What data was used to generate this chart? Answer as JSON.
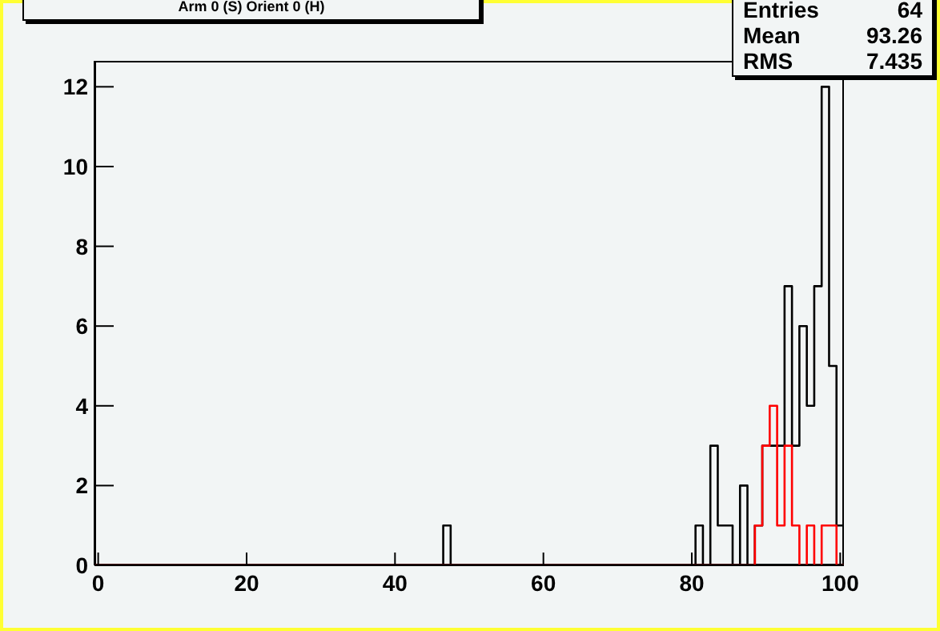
{
  "chart_data": {
    "type": "histogram",
    "title": "Arm 0 (S) Orient 0 (H)",
    "bins": [
      -0.5,
      0.5,
      1.5,
      2.5,
      3.5,
      4.5,
      5.5,
      6.5,
      7.5,
      8.5,
      9.5,
      10.5,
      11.5,
      12.5,
      13.5,
      14.5,
      15.5,
      16.5,
      17.5,
      18.5,
      19.5,
      20.5,
      21.5,
      22.5,
      23.5,
      24.5,
      25.5,
      26.5,
      27.5,
      28.5,
      29.5,
      30.5,
      31.5,
      32.5,
      33.5,
      34.5,
      35.5,
      36.5,
      37.5,
      38.5,
      39.5,
      40.5,
      41.5,
      42.5,
      43.5,
      44.5,
      45.5,
      46.5,
      47.5,
      48.5,
      49.5,
      50.5,
      51.5,
      52.5,
      53.5,
      54.5,
      55.5,
      56.5,
      57.5,
      58.5,
      59.5,
      60.5,
      61.5,
      62.5,
      63.5,
      64.5,
      65.5,
      66.5,
      67.5,
      68.5,
      69.5,
      70.5,
      71.5,
      72.5,
      73.5,
      74.5,
      75.5,
      76.5,
      77.5,
      78.5,
      79.5,
      80.5,
      81.5,
      82.5,
      83.5,
      84.5,
      85.5,
      86.5,
      87.5,
      88.5,
      89.5,
      90.5,
      91.5,
      92.5,
      93.5,
      94.5,
      95.5,
      96.5,
      97.5,
      98.5,
      99.5,
      100.5
    ],
    "series": [
      {
        "color": "#000000",
        "values": [
          0,
          0,
          0,
          0,
          0,
          0,
          0,
          0,
          0,
          0,
          0,
          0,
          0,
          0,
          0,
          0,
          0,
          0,
          0,
          0,
          0,
          0,
          0,
          0,
          0,
          0,
          0,
          0,
          0,
          0,
          0,
          0,
          0,
          0,
          0,
          0,
          0,
          0,
          0,
          0,
          0,
          0,
          0,
          0,
          0,
          0,
          0,
          1,
          0,
          0,
          0,
          0,
          0,
          0,
          0,
          0,
          0,
          0,
          0,
          0,
          0,
          0,
          0,
          0,
          0,
          0,
          0,
          0,
          0,
          0,
          0,
          0,
          0,
          0,
          0,
          0,
          0,
          0,
          0,
          0,
          0,
          1,
          0,
          3,
          1,
          1,
          0,
          2,
          0,
          1,
          3,
          3,
          3,
          7,
          3,
          6,
          4,
          7,
          12,
          5,
          1
        ]
      },
      {
        "color": "#ff0000",
        "values": [
          0,
          0,
          0,
          0,
          0,
          0,
          0,
          0,
          0,
          0,
          0,
          0,
          0,
          0,
          0,
          0,
          0,
          0,
          0,
          0,
          0,
          0,
          0,
          0,
          0,
          0,
          0,
          0,
          0,
          0,
          0,
          0,
          0,
          0,
          0,
          0,
          0,
          0,
          0,
          0,
          0,
          0,
          0,
          0,
          0,
          0,
          0,
          0,
          0,
          0,
          0,
          0,
          0,
          0,
          0,
          0,
          0,
          0,
          0,
          0,
          0,
          0,
          0,
          0,
          0,
          0,
          0,
          0,
          0,
          0,
          0,
          0,
          0,
          0,
          0,
          0,
          0,
          0,
          0,
          0,
          0,
          0,
          0,
          0,
          0,
          0,
          0,
          0,
          0,
          1,
          3,
          4,
          1,
          3,
          1,
          0,
          1,
          0,
          1,
          1,
          0
        ]
      }
    ],
    "xlim": [
      -0.5,
      100.5
    ],
    "xticks": [
      0,
      20,
      40,
      60,
      80,
      100
    ],
    "ylim": [
      0,
      12.65
    ],
    "yticks": [
      0,
      2,
      4,
      6,
      8,
      10,
      12
    ],
    "grid": false,
    "annotations": [
      "Entries",
      "64",
      "Mean",
      "93.26",
      "RMS",
      "7.435"
    ]
  }
}
